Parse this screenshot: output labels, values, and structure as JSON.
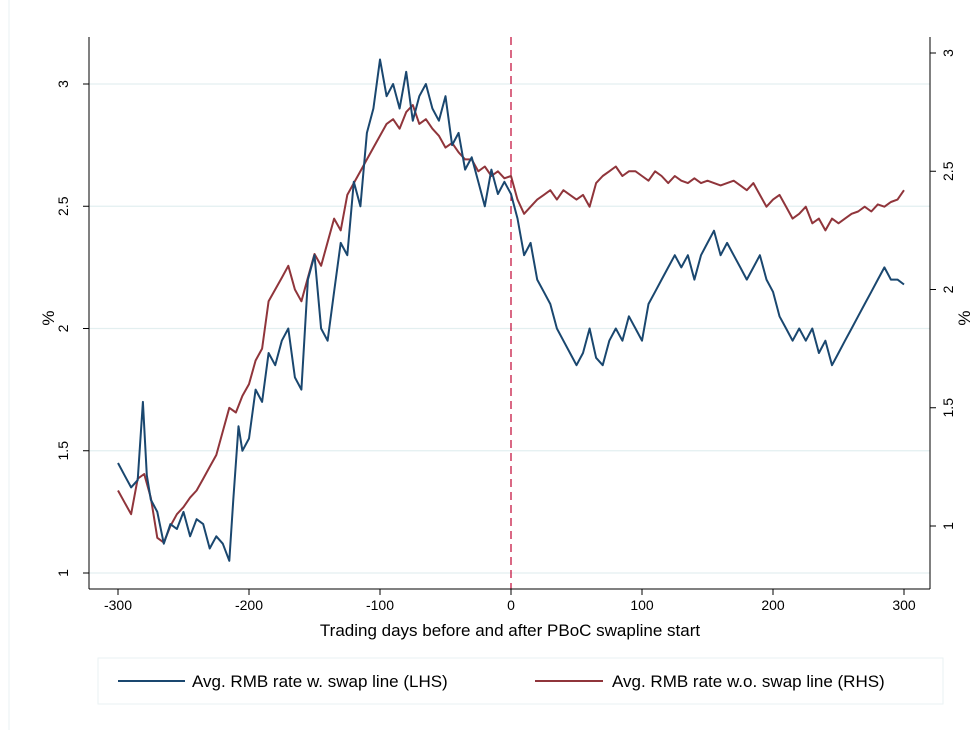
{
  "chart_data": {
    "type": "line",
    "title": "",
    "xlabel": "Trading days before and after PBoC swapline start",
    "ylabel_left": "%",
    "ylabel_right": "%",
    "xlim": [
      -300,
      300
    ],
    "xticks": [
      -300,
      -200,
      -100,
      0,
      100,
      200,
      300
    ],
    "ylim_left": [
      0.95,
      3.2
    ],
    "yticks_left": [
      1,
      1.5,
      2,
      2.5,
      3
    ],
    "ylim_right": [
      0.7,
      3.1
    ],
    "yticks_right": [
      1,
      1.5,
      2,
      2.5,
      3
    ],
    "grid": true,
    "vertical_reference_line": 0,
    "legend_position": "bottom",
    "colors": {
      "lhs": "#1a476f",
      "rhs": "#90353b",
      "vline": "#c10534",
      "grid": "#e3eff0",
      "frame": "#eaf2f3"
    },
    "series": [
      {
        "name": "Avg. RMB rate w. swap line (LHS)",
        "axis": "left",
        "x": [
          -300,
          -295,
          -290,
          -285,
          -281,
          -278,
          -275,
          -270,
          -265,
          -260,
          -255,
          -250,
          -245,
          -240,
          -235,
          -230,
          -225,
          -220,
          -215,
          -212,
          -208,
          -205,
          -200,
          -195,
          -190,
          -185,
          -180,
          -175,
          -170,
          -165,
          -160,
          -155,
          -150,
          -145,
          -140,
          -135,
          -130,
          -125,
          -120,
          -115,
          -110,
          -105,
          -100,
          -95,
          -90,
          -85,
          -80,
          -75,
          -70,
          -65,
          -60,
          -55,
          -50,
          -45,
          -40,
          -35,
          -30,
          -25,
          -20,
          -15,
          -10,
          -5,
          0,
          5,
          10,
          15,
          20,
          25,
          30,
          35,
          40,
          45,
          50,
          55,
          60,
          65,
          70,
          75,
          80,
          85,
          90,
          95,
          100,
          105,
          110,
          115,
          120,
          125,
          130,
          135,
          140,
          145,
          150,
          155,
          160,
          165,
          170,
          175,
          180,
          185,
          190,
          195,
          200,
          205,
          210,
          215,
          220,
          225,
          230,
          235,
          240,
          245,
          250,
          255,
          260,
          265,
          270,
          275,
          280,
          285,
          290,
          295,
          300
        ],
        "values": [
          1.45,
          1.4,
          1.35,
          1.38,
          1.7,
          1.4,
          1.3,
          1.25,
          1.12,
          1.2,
          1.18,
          1.25,
          1.15,
          1.22,
          1.2,
          1.1,
          1.15,
          1.12,
          1.05,
          1.3,
          1.6,
          1.5,
          1.55,
          1.75,
          1.7,
          1.9,
          1.85,
          1.95,
          2.0,
          1.8,
          1.75,
          2.2,
          2.3,
          2.0,
          1.95,
          2.15,
          2.35,
          2.3,
          2.6,
          2.5,
          2.8,
          2.9,
          3.1,
          2.95,
          3.0,
          2.9,
          3.05,
          2.85,
          2.95,
          3.0,
          2.9,
          2.85,
          2.95,
          2.75,
          2.8,
          2.65,
          2.7,
          2.6,
          2.5,
          2.65,
          2.55,
          2.6,
          2.55,
          2.45,
          2.3,
          2.35,
          2.2,
          2.15,
          2.1,
          2.0,
          1.95,
          1.9,
          1.85,
          1.9,
          2.0,
          1.88,
          1.85,
          1.95,
          2.0,
          1.95,
          2.05,
          2.0,
          1.95,
          2.1,
          2.15,
          2.2,
          2.25,
          2.3,
          2.25,
          2.3,
          2.2,
          2.3,
          2.35,
          2.4,
          2.3,
          2.35,
          2.3,
          2.25,
          2.2,
          2.25,
          2.3,
          2.2,
          2.15,
          2.05,
          2.0,
          1.95,
          2.0,
          1.95,
          2.0,
          1.9,
          1.95,
          1.85,
          1.9,
          1.95,
          2.0,
          2.05,
          2.1,
          2.15,
          2.2,
          2.25,
          2.2,
          2.2,
          2.18
        ]
      },
      {
        "name": "Avg. RMB rate w.o. swap line (RHS)",
        "axis": "right",
        "x": [
          -300,
          -295,
          -290,
          -285,
          -280,
          -275,
          -270,
          -265,
          -260,
          -255,
          -250,
          -245,
          -240,
          -235,
          -230,
          -225,
          -220,
          -215,
          -210,
          -205,
          -200,
          -195,
          -190,
          -185,
          -180,
          -175,
          -170,
          -165,
          -160,
          -155,
          -150,
          -145,
          -140,
          -135,
          -130,
          -125,
          -120,
          -115,
          -110,
          -105,
          -100,
          -95,
          -90,
          -85,
          -80,
          -75,
          -70,
          -65,
          -60,
          -55,
          -50,
          -45,
          -40,
          -35,
          -30,
          -25,
          -20,
          -15,
          -10,
          -5,
          0,
          5,
          10,
          15,
          20,
          25,
          30,
          35,
          40,
          45,
          50,
          55,
          60,
          65,
          70,
          75,
          80,
          85,
          90,
          95,
          100,
          105,
          110,
          115,
          120,
          125,
          130,
          135,
          140,
          145,
          150,
          155,
          160,
          165,
          170,
          175,
          180,
          185,
          190,
          195,
          200,
          205,
          210,
          215,
          220,
          225,
          230,
          235,
          240,
          245,
          250,
          255,
          260,
          265,
          270,
          275,
          280,
          285,
          290,
          295,
          300
        ],
        "values": [
          1.15,
          1.1,
          1.05,
          1.2,
          1.22,
          1.12,
          0.95,
          0.93,
          1.0,
          1.05,
          1.08,
          1.12,
          1.15,
          1.2,
          1.25,
          1.3,
          1.4,
          1.5,
          1.48,
          1.55,
          1.6,
          1.7,
          1.75,
          1.95,
          2.0,
          2.05,
          2.1,
          2.0,
          1.95,
          2.05,
          2.15,
          2.1,
          2.2,
          2.3,
          2.25,
          2.4,
          2.45,
          2.5,
          2.55,
          2.6,
          2.65,
          2.7,
          2.72,
          2.68,
          2.75,
          2.78,
          2.7,
          2.72,
          2.68,
          2.65,
          2.6,
          2.62,
          2.58,
          2.55,
          2.55,
          2.5,
          2.52,
          2.48,
          2.5,
          2.47,
          2.48,
          2.38,
          2.32,
          2.35,
          2.38,
          2.4,
          2.42,
          2.38,
          2.42,
          2.4,
          2.38,
          2.4,
          2.35,
          2.45,
          2.48,
          2.5,
          2.52,
          2.48,
          2.5,
          2.5,
          2.48,
          2.46,
          2.5,
          2.48,
          2.45,
          2.48,
          2.46,
          2.45,
          2.47,
          2.45,
          2.46,
          2.45,
          2.44,
          2.45,
          2.46,
          2.44,
          2.42,
          2.45,
          2.4,
          2.35,
          2.38,
          2.4,
          2.35,
          2.3,
          2.32,
          2.35,
          2.28,
          2.3,
          2.25,
          2.3,
          2.28,
          2.3,
          2.32,
          2.33,
          2.35,
          2.33,
          2.36,
          2.35,
          2.37,
          2.38,
          2.42
        ]
      }
    ]
  }
}
